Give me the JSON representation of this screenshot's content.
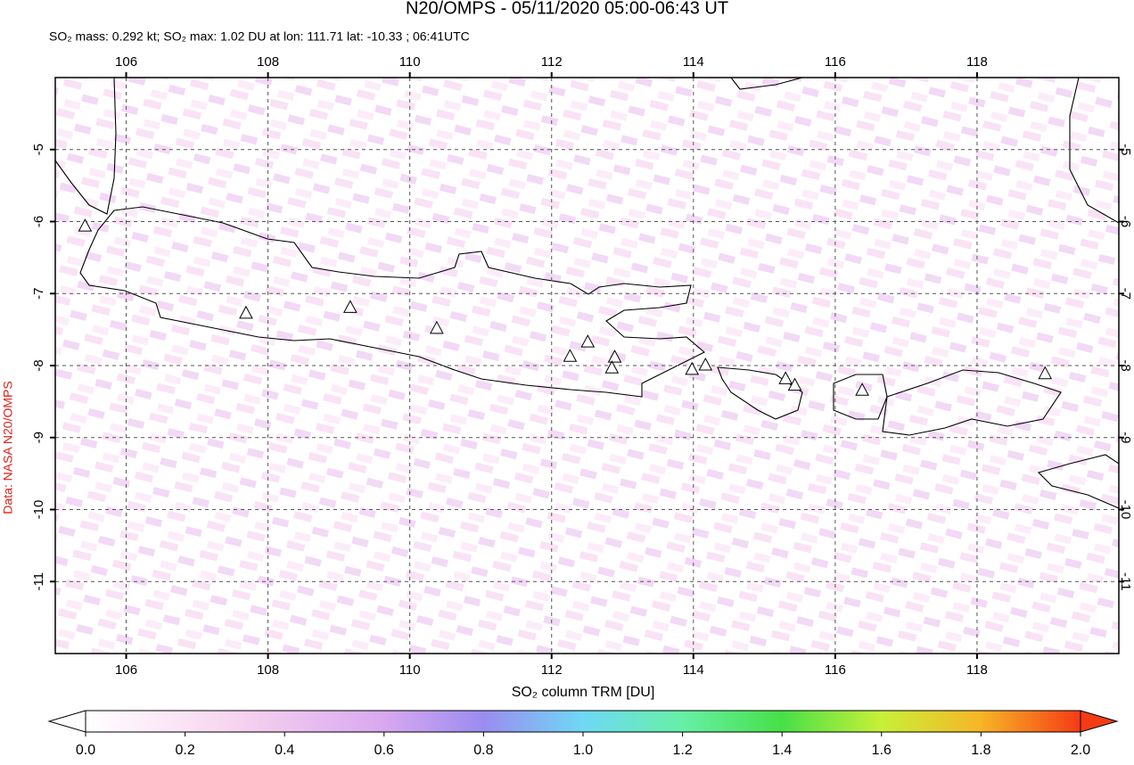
{
  "map": {
    "title": "N20/OMPS - 05/11/2020 05:00-06:43 UT",
    "subtitle": "SO₂ mass: 0.292 kt; SO₂ max: 1.02 DU at lon: 111.71 lat: -10.33 ; 06:41UTC",
    "credit": "Data: NASA N20/OMPS",
    "xlim": [
      105,
      120
    ],
    "ylim": [
      -12,
      -4
    ],
    "xticks": [
      106,
      108,
      110,
      112,
      114,
      116,
      118
    ],
    "yticks": [
      -5,
      -6,
      -7,
      -8,
      -9,
      -10,
      -11
    ],
    "volcanoes": [
      {
        "lon": 105.42,
        "lat": -6.07
      },
      {
        "lon": 107.69,
        "lat": -7.28
      },
      {
        "lon": 109.16,
        "lat": -7.2
      },
      {
        "lon": 110.38,
        "lat": -7.49
      },
      {
        "lon": 112.26,
        "lat": -7.88
      },
      {
        "lon": 112.51,
        "lat": -7.68
      },
      {
        "lon": 112.89,
        "lat": -7.89
      },
      {
        "lon": 112.85,
        "lat": -8.04
      },
      {
        "lon": 113.98,
        "lat": -8.06
      },
      {
        "lon": 114.17,
        "lat": -8.0
      },
      {
        "lon": 115.3,
        "lat": -8.19
      },
      {
        "lon": 115.43,
        "lat": -8.28
      },
      {
        "lon": 116.38,
        "lat": -8.35
      },
      {
        "lon": 118.96,
        "lat": -8.12
      }
    ],
    "colorbar": {
      "label": "SO₂ column TRM [DU]",
      "lim": [
        0,
        2
      ],
      "ticks": [
        {
          "value": 0,
          "label": "0.0"
        },
        {
          "value": 0.2,
          "label": "0.2"
        },
        {
          "value": 0.4,
          "label": "0.4"
        },
        {
          "value": 0.6,
          "label": "0.6"
        },
        {
          "value": 0.8,
          "label": "0.8"
        },
        {
          "value": 1.0,
          "label": "1.0"
        },
        {
          "value": 1.2,
          "label": "1.2"
        },
        {
          "value": 1.4,
          "label": "1.4"
        },
        {
          "value": 1.6,
          "label": "1.6"
        },
        {
          "value": 1.8,
          "label": "1.8"
        },
        {
          "value": 2.0,
          "label": "2.0"
        }
      ]
    }
  }
}
